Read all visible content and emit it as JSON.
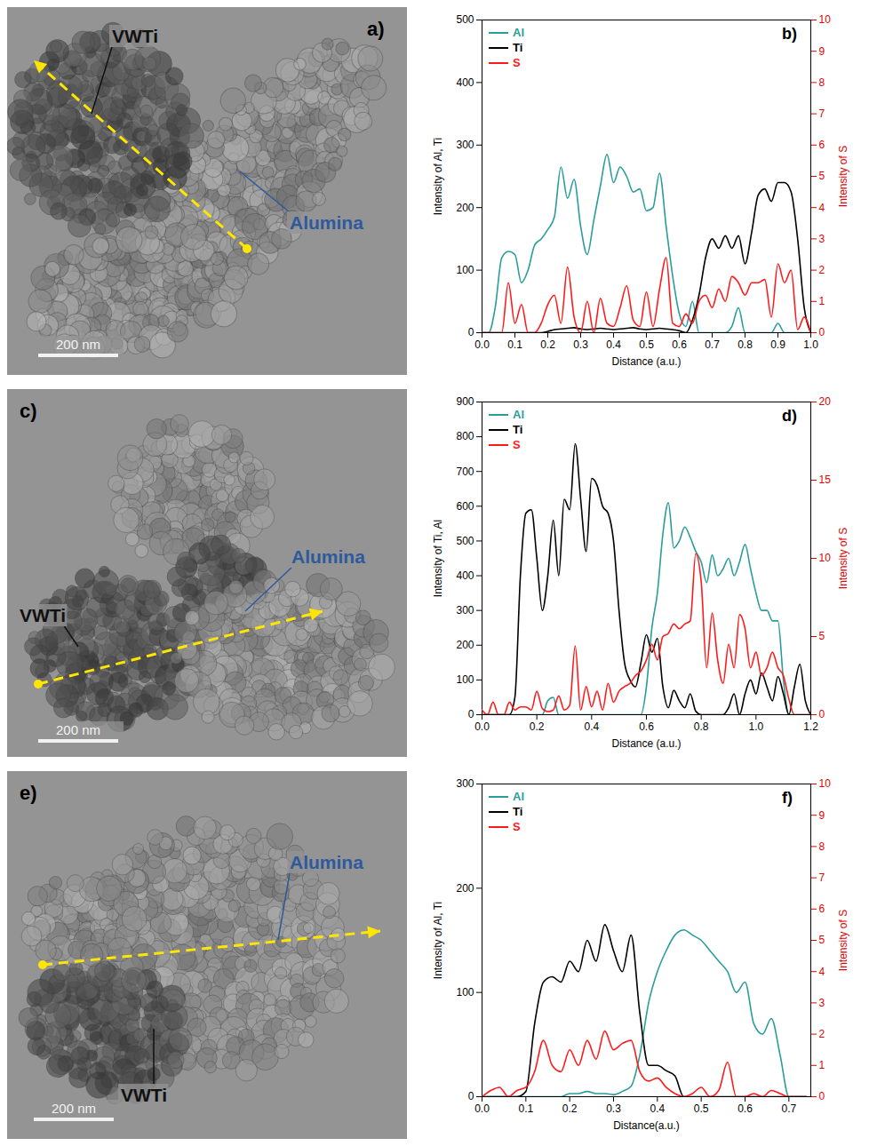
{
  "chart_data": [
    {
      "type": "line",
      "panel": "b)",
      "x_label": "Distance (a.u.)",
      "y_label": "Intensity of Al, Ti",
      "y2_label": "Intensity of S",
      "legend": "top-left",
      "x": [
        0,
        0.02,
        0.04,
        0.06,
        0.08,
        0.1,
        0.12,
        0.14,
        0.16,
        0.18,
        0.2,
        0.22,
        0.24,
        0.26,
        0.28,
        0.3,
        0.32,
        0.34,
        0.36,
        0.38,
        0.4,
        0.42,
        0.44,
        0.46,
        0.48,
        0.5,
        0.52,
        0.54,
        0.56,
        0.58,
        0.6,
        0.62,
        0.64,
        0.66,
        0.68,
        0.7,
        0.72,
        0.74,
        0.76,
        0.78,
        0.8,
        0.82,
        0.84,
        0.86,
        0.88,
        0.9,
        0.92,
        0.94,
        0.96,
        0.98,
        1
      ],
      "xlim": [
        0,
        1
      ],
      "xticks": [
        {
          "value": 0,
          "label": "0.0"
        },
        0.1,
        0.2,
        0.3,
        0.4,
        0.5,
        0.6,
        0.7,
        0.8,
        0.9,
        {
          "value": 1,
          "label": "1.0"
        }
      ],
      "ylim": [
        0,
        500
      ],
      "yticks": [
        0,
        100,
        200,
        300,
        400,
        500
      ],
      "y2lim": [
        0,
        10
      ],
      "y2ticks": [
        0,
        1,
        2,
        3,
        4,
        5,
        6,
        7,
        8,
        9,
        10
      ],
      "series": [
        {
          "name": "Al",
          "color": "#2a9d9b",
          "values": [
            0,
            0,
            40,
            120,
            130,
            125,
            80,
            100,
            140,
            150,
            165,
            185,
            265,
            215,
            245,
            170,
            125,
            180,
            235,
            285,
            240,
            265,
            250,
            225,
            230,
            195,
            200,
            255,
            170,
            90,
            30,
            10,
            50,
            0,
            0,
            0,
            0,
            0,
            10,
            40,
            0,
            0,
            0,
            0,
            0,
            15,
            0,
            0,
            0,
            0,
            0
          ]
        },
        {
          "name": "Ti",
          "color": "#000000",
          "values": [
            0,
            0,
            0,
            0,
            0,
            0,
            0,
            0,
            0,
            0,
            2,
            5,
            6,
            7,
            8,
            6,
            5,
            6,
            7,
            6,
            5,
            6,
            7,
            8,
            6,
            5,
            6,
            7,
            6,
            5,
            3,
            0,
            20,
            60,
            120,
            150,
            135,
            155,
            135,
            155,
            110,
            160,
            220,
            230,
            210,
            240,
            240,
            225,
            150,
            40,
            0
          ]
        },
        {
          "name": "S",
          "color": "#ff1a1a",
          "axis": "y2",
          "values": [
            0,
            0,
            0,
            0,
            1.6,
            0.3,
            0.9,
            0,
            0,
            0.3,
            0.9,
            1.2,
            0.3,
            2.1,
            0.5,
            0,
            1,
            0,
            1.1,
            0.3,
            0.2,
            0.8,
            1.5,
            0.4,
            0.2,
            1.3,
            0.2,
            1.4,
            2.4,
            0.3,
            0.2,
            0.6,
            0.3,
            1,
            1.2,
            0.8,
            1.4,
            1,
            1.8,
            1.6,
            1.2,
            1.6,
            1.6,
            1.7,
            0.5,
            2.2,
            1.6,
            2,
            0.1,
            0.5,
            0
          ]
        }
      ]
    },
    {
      "type": "line",
      "panel": "d)",
      "x_label": "Distance (a.u.)",
      "y_label": "Intensity of Ti, Al",
      "y2_label": "Intensity of S",
      "legend": "top-left",
      "x": [
        0,
        0.02,
        0.04,
        0.06,
        0.08,
        0.1,
        0.12,
        0.14,
        0.16,
        0.18,
        0.2,
        0.22,
        0.24,
        0.26,
        0.28,
        0.3,
        0.32,
        0.34,
        0.36,
        0.38,
        0.4,
        0.42,
        0.44,
        0.46,
        0.48,
        0.5,
        0.52,
        0.54,
        0.56,
        0.58,
        0.6,
        0.62,
        0.64,
        0.66,
        0.68,
        0.7,
        0.72,
        0.74,
        0.76,
        0.78,
        0.8,
        0.82,
        0.84,
        0.86,
        0.88,
        0.9,
        0.92,
        0.94,
        0.96,
        0.98,
        1,
        1.02,
        1.04,
        1.06,
        1.08,
        1.1,
        1.12,
        1.14,
        1.16,
        1.18,
        1.2
      ],
      "xlim": [
        0,
        1.2
      ],
      "xticks": [
        {
          "value": 0,
          "label": "0.0"
        },
        0.2,
        0.4,
        0.6,
        0.8,
        {
          "value": 1,
          "label": "1.0"
        },
        1.2
      ],
      "ylim": [
        0,
        900
      ],
      "yticks": [
        0,
        100,
        200,
        300,
        400,
        500,
        600,
        700,
        800,
        900
      ],
      "y2lim": [
        0,
        20
      ],
      "y2ticks": [
        0,
        5,
        10,
        15,
        20
      ],
      "series": [
        {
          "name": "Al",
          "color": "#2a9d9b",
          "values": [
            0,
            0,
            0,
            0,
            0,
            0,
            0,
            0,
            0,
            0,
            0,
            0,
            40,
            50,
            0,
            0,
            0,
            0,
            0,
            0,
            0,
            0,
            0,
            0,
            0,
            0,
            0,
            0,
            0,
            0,
            80,
            250,
            350,
            520,
            610,
            480,
            500,
            540,
            510,
            470,
            440,
            380,
            460,
            400,
            420,
            450,
            400,
            440,
            490,
            420,
            350,
            300,
            300,
            270,
            270,
            100,
            0,
            0,
            0,
            0,
            0
          ]
        },
        {
          "name": "Ti",
          "color": "#000000",
          "values": [
            0,
            0,
            0,
            0,
            0,
            0,
            50,
            400,
            580,
            590,
            450,
            300,
            400,
            560,
            400,
            620,
            590,
            780,
            620,
            470,
            680,
            660,
            600,
            580,
            500,
            300,
            150,
            100,
            80,
            150,
            230,
            180,
            220,
            80,
            20,
            70,
            40,
            20,
            60,
            10,
            0,
            0,
            0,
            0,
            0,
            20,
            60,
            0,
            60,
            100,
            60,
            120,
            80,
            40,
            110,
            60,
            0,
            80,
            145,
            40,
            0
          ]
        },
        {
          "name": "S",
          "color": "#ff1a1a",
          "axis": "y2",
          "values": [
            0.3,
            0,
            0.8,
            0,
            0,
            0.8,
            0.3,
            0.5,
            0.5,
            0.3,
            1.5,
            0.4,
            0.2,
            0.3,
            1.2,
            0.3,
            0.6,
            4.4,
            0.3,
            1.8,
            0.5,
            1.5,
            0.3,
            2,
            0.8,
            1.5,
            1.8,
            2,
            2.5,
            2.8,
            3.5,
            4.5,
            3.5,
            5,
            5.2,
            5.8,
            5.5,
            5.8,
            6,
            10.3,
            8.5,
            3,
            6.5,
            3.5,
            2,
            4.5,
            3,
            6.4,
            5.5,
            3,
            4,
            2.5,
            3,
            4,
            3,
            2.5,
            1,
            0,
            0,
            0,
            0
          ]
        }
      ]
    },
    {
      "type": "line",
      "panel": "f)",
      "x_label": "Distance(a.u.)",
      "y_label": "Intensity of Al, Ti",
      "y2_label": "Intensity of S",
      "legend": "top-left",
      "x": [
        0,
        0.02,
        0.04,
        0.06,
        0.08,
        0.1,
        0.12,
        0.14,
        0.16,
        0.18,
        0.2,
        0.22,
        0.24,
        0.26,
        0.28,
        0.3,
        0.32,
        0.34,
        0.36,
        0.38,
        0.4,
        0.42,
        0.44,
        0.46,
        0.48,
        0.5,
        0.52,
        0.54,
        0.56,
        0.58,
        0.6,
        0.62,
        0.64,
        0.66,
        0.68,
        0.7,
        0.72,
        0.74
      ],
      "xlim": [
        0,
        0.75
      ],
      "xticks": [
        {
          "value": 0,
          "label": "0.0"
        },
        0.1,
        0.2,
        0.3,
        0.4,
        0.5,
        0.6,
        0.7
      ],
      "ylim": [
        0,
        300
      ],
      "yticks": [
        0,
        100,
        200,
        300
      ],
      "y2lim": [
        0,
        10
      ],
      "y2ticks": [
        0,
        1,
        2,
        3,
        4,
        5,
        6,
        7,
        8,
        9,
        10
      ],
      "series": [
        {
          "name": "Al",
          "color": "#2a9d9b",
          "values": [
            0,
            0,
            0,
            0,
            0,
            0,
            0,
            0,
            0,
            0,
            3,
            3,
            5,
            3,
            3,
            2,
            5,
            10,
            40,
            90,
            120,
            140,
            155,
            160,
            155,
            150,
            140,
            130,
            120,
            100,
            110,
            70,
            60,
            75,
            40,
            0,
            0,
            0
          ]
        },
        {
          "name": "Ti",
          "color": "#000000",
          "values": [
            0,
            0,
            0,
            0,
            0,
            5,
            70,
            110,
            115,
            110,
            130,
            120,
            150,
            130,
            165,
            140,
            120,
            155,
            80,
            30,
            30,
            25,
            20,
            0,
            0,
            0,
            0,
            0,
            0,
            0,
            0,
            0,
            0,
            0,
            0,
            0,
            0,
            0
          ]
        },
        {
          "name": "S",
          "color": "#ff1a1a",
          "axis": "y2",
          "values": [
            0,
            0.2,
            0.3,
            0,
            0.2,
            0.3,
            0.8,
            1.8,
            1,
            0.8,
            1.5,
            1,
            1.8,
            1.2,
            2.1,
            1.5,
            1.7,
            1.8,
            0.8,
            0.5,
            0.6,
            0.3,
            0.1,
            0,
            0.1,
            0.3,
            0,
            0.2,
            1.1,
            0,
            0,
            0.1,
            0,
            0.2,
            0.1,
            0,
            0,
            0
          ]
        }
      ]
    }
  ],
  "images": [
    {
      "panel": "a)",
      "labels": [
        "VWTi",
        "Alumina"
      ],
      "scale_bar": "200 nm"
    },
    {
      "panel": "c)",
      "labels": [
        "VWTi",
        "Alumina"
      ],
      "scale_bar": "200 nm"
    },
    {
      "panel": "e)",
      "labels": [
        "VWTi",
        "Alumina"
      ],
      "scale_bar": "200 nm"
    }
  ]
}
